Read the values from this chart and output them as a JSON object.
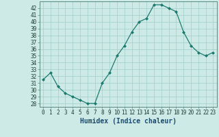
{
  "x": [
    0,
    1,
    2,
    3,
    4,
    5,
    6,
    7,
    8,
    9,
    10,
    11,
    12,
    13,
    14,
    15,
    16,
    17,
    18,
    19,
    20,
    21,
    22,
    23
  ],
  "y": [
    31.5,
    32.5,
    30.5,
    29.5,
    29.0,
    28.5,
    28.0,
    28.0,
    31.0,
    32.5,
    35.0,
    36.5,
    38.5,
    40.0,
    40.5,
    42.5,
    42.5,
    42.0,
    41.5,
    38.5,
    36.5,
    35.5,
    35.0,
    35.5
  ],
  "xlabel": "Humidex (Indice chaleur)",
  "ylim": [
    27.5,
    43.0
  ],
  "xlim": [
    -0.5,
    23.5
  ],
  "yticks": [
    28,
    29,
    30,
    31,
    32,
    33,
    34,
    35,
    36,
    37,
    38,
    39,
    40,
    41,
    42
  ],
  "xticks": [
    0,
    1,
    2,
    3,
    4,
    5,
    6,
    7,
    8,
    9,
    10,
    11,
    12,
    13,
    14,
    15,
    16,
    17,
    18,
    19,
    20,
    21,
    22,
    23
  ],
  "line_color": "#1a7a6e",
  "marker_color": "#1a7a6e",
  "bg_color": "#ceeae6",
  "grid_color": "#9ecec8",
  "xlabel_fontsize": 7,
  "tick_fontsize": 5.5
}
